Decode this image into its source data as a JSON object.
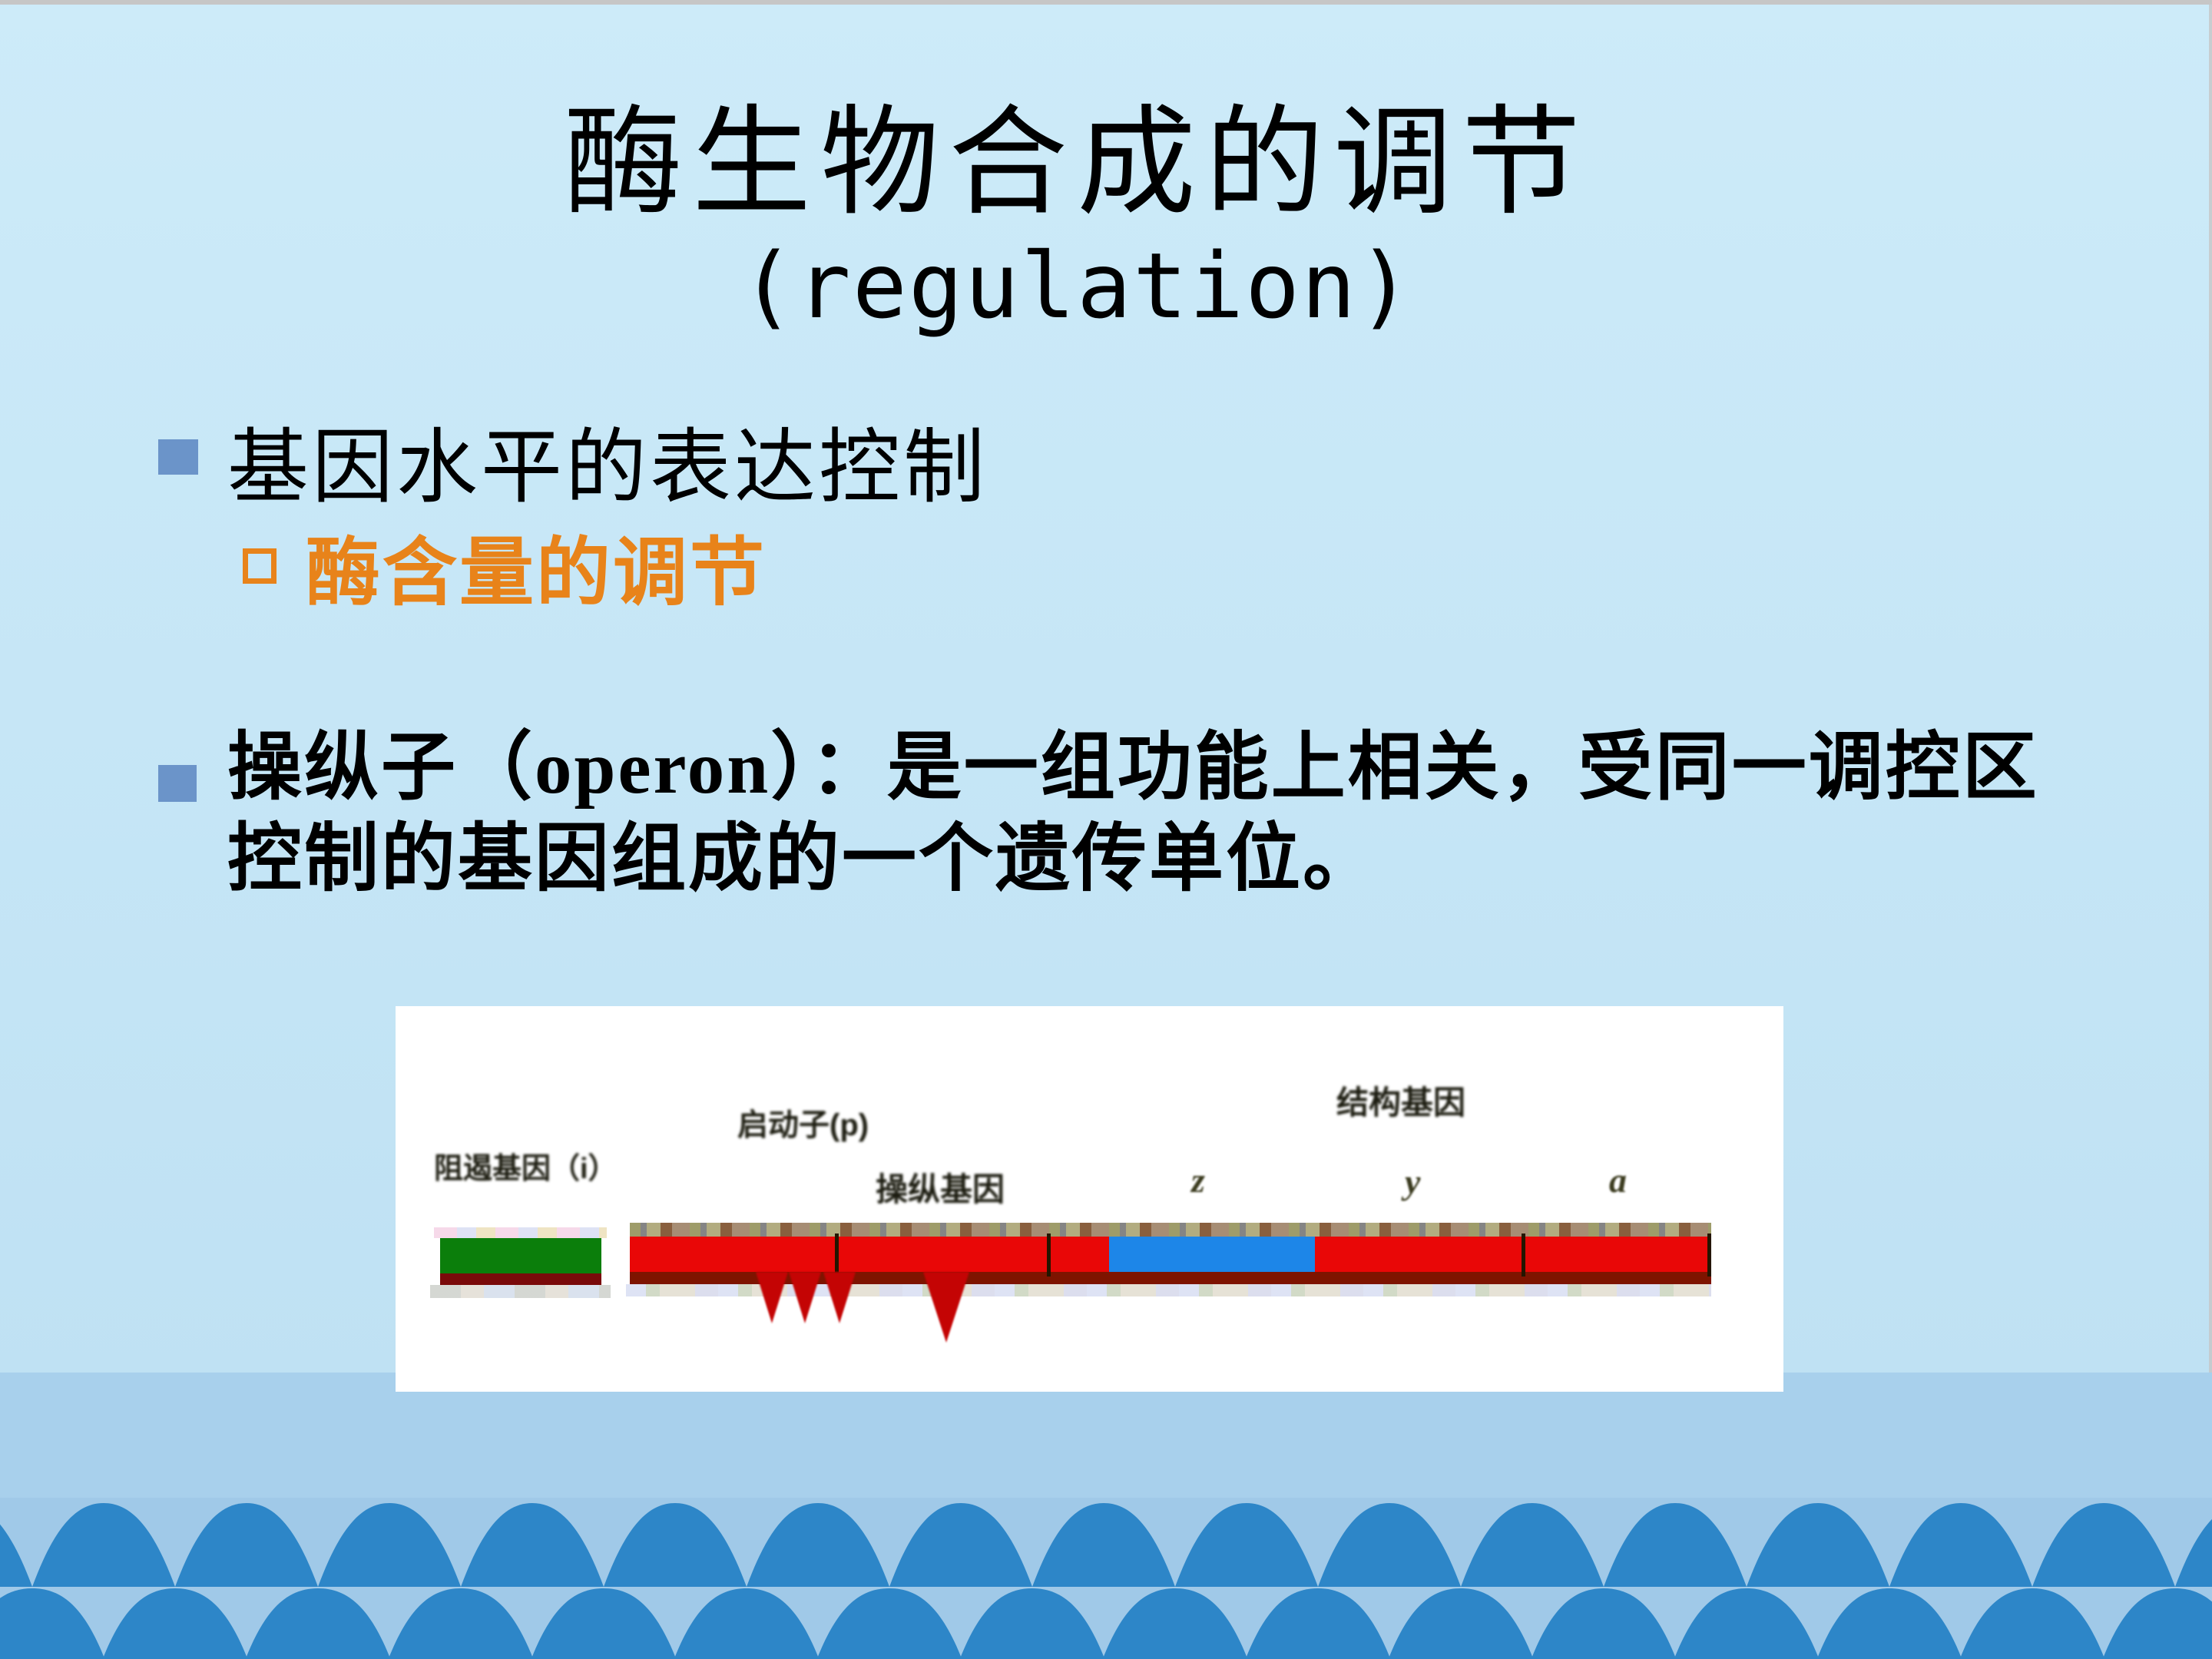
{
  "slide": {
    "title": {
      "line1": "酶生物合成的调节",
      "line2": "(regulation)"
    },
    "bullets": [
      {
        "level": 1,
        "text": "基因水平的表达控制"
      },
      {
        "level": 2,
        "text": "酶含量的调节"
      },
      {
        "level": 1,
        "text_line1": "操纵子（operon）：是一组功能上相关，受同一调控区",
        "text_line2": "控制的基因组成的一个遗传单位。"
      }
    ]
  },
  "figure": {
    "description": "operon diagram",
    "labels": {
      "repressor_gene": "阻遏基因（i）",
      "promoter": "启动子(p)",
      "operator_gene": "操纵基因",
      "structural_genes": "结构基因",
      "gene_z": "z",
      "gene_y": "y",
      "gene_a": "a"
    }
  },
  "colors": {
    "background_top": "#cdebf9",
    "background_mid": "#c3e4f5",
    "band_high": "#a8d0ec",
    "band_low": "#a0c9e8",
    "wave_dome": "#2d86c8",
    "top_strip_gray": "#c6c6c6",
    "accent_orange": "#e8831a",
    "bullet_blue": "#6b94c9",
    "bar_red": "#e90707",
    "segment_blue": "#1d86e8",
    "repressor_green": "#0b7e0b",
    "bar_dark_red": "#7e1400",
    "triangle_red": "#c40404"
  }
}
